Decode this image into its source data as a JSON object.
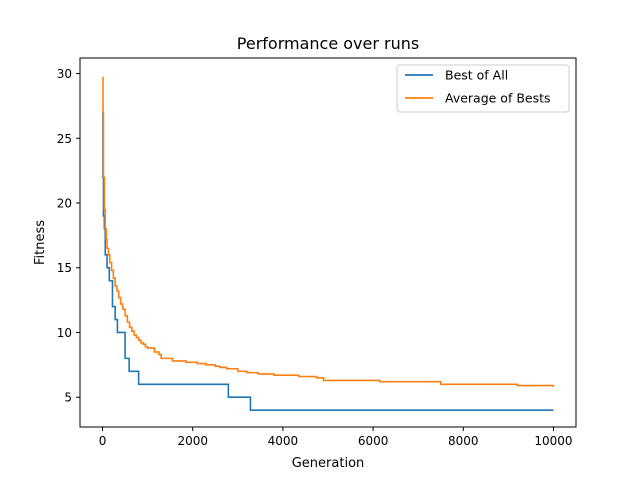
{
  "chart_data": {
    "type": "line",
    "title": "Performance over runs",
    "xlabel": "Generation",
    "ylabel": "Fitness",
    "xlim": [
      -500,
      10500
    ],
    "ylim": [
      2.7,
      31.2
    ],
    "xticks": [
      0,
      2000,
      4000,
      6000,
      8000,
      10000
    ],
    "yticks": [
      5,
      10,
      15,
      20,
      25,
      30
    ],
    "xtick_labels": [
      "0",
      "2000",
      "4000",
      "6000",
      "8000",
      "10000"
    ],
    "ytick_labels": [
      "5",
      "10",
      "15",
      "20",
      "25",
      "30"
    ],
    "grid": false,
    "legend_position": "top-right",
    "series": [
      {
        "name": "Best of All",
        "color": "#1f77b4",
        "step": true,
        "x": [
          0,
          10,
          20,
          40,
          60,
          100,
          150,
          220,
          280,
          330,
          420,
          500,
          590,
          800,
          1600,
          2790,
          3280,
          10000
        ],
        "y": [
          27,
          22,
          19,
          18,
          16,
          15,
          14,
          12,
          11,
          10,
          10,
          8,
          7,
          6,
          6,
          5,
          4,
          4
        ]
      },
      {
        "name": "Average of Bests",
        "color": "#ff7f0e",
        "step": true,
        "x": [
          0,
          10,
          20,
          40,
          60,
          80,
          100,
          130,
          160,
          200,
          240,
          280,
          320,
          360,
          400,
          450,
          500,
          550,
          600,
          650,
          700,
          750,
          800,
          850,
          900,
          950,
          1000,
          1150,
          1250,
          1300,
          1550,
          1850,
          2100,
          2300,
          2500,
          2600,
          2750,
          3000,
          3200,
          3450,
          3800,
          4350,
          4750,
          4900,
          6150,
          7500,
          9200,
          10000
        ],
        "y": [
          29.7,
          27,
          22,
          19.5,
          18,
          17.2,
          16.5,
          16,
          15.4,
          14.8,
          14.2,
          13.6,
          13.2,
          12.7,
          12.2,
          11.8,
          11.3,
          10.8,
          10.4,
          10.1,
          9.8,
          9.6,
          9.4,
          9.2,
          9.1,
          8.9,
          8.8,
          8.5,
          8.3,
          8.0,
          7.8,
          7.7,
          7.6,
          7.5,
          7.4,
          7.3,
          7.2,
          7.0,
          6.9,
          6.8,
          6.7,
          6.6,
          6.5,
          6.3,
          6.2,
          6.0,
          5.9,
          5.8
        ]
      }
    ]
  }
}
